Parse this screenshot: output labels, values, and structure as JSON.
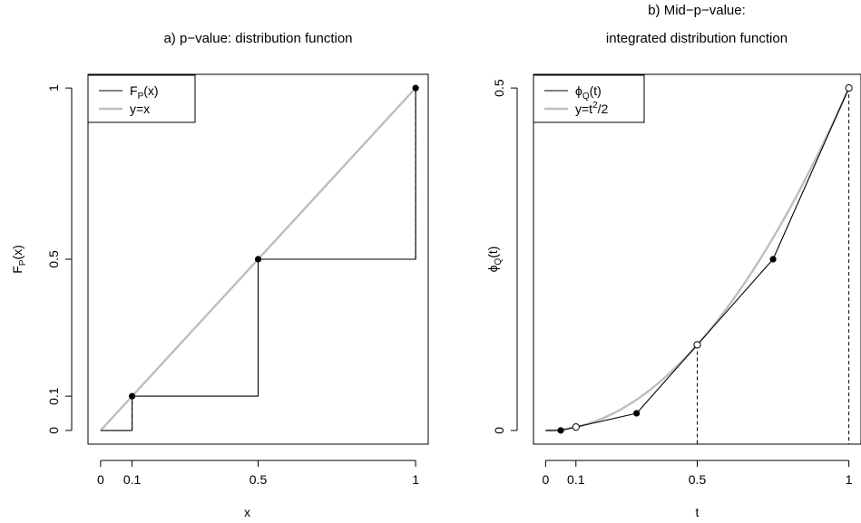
{
  "chart_data": [
    {
      "type": "line",
      "title": "a) p−value: distribution function",
      "xlabel": "x",
      "ylabel": {
        "main": "F",
        "sub": "P",
        "arg": "(x)"
      },
      "xlim": [
        -0.04,
        1.04
      ],
      "ylim": [
        -0.04,
        1.04
      ],
      "xticks": [
        0,
        0.1,
        0.5,
        1
      ],
      "xtick_labels": [
        "0",
        "0.1",
        "0.5",
        "1"
      ],
      "yticks": [
        0,
        0.1,
        0.5,
        1
      ],
      "ytick_labels": [
        "0",
        "0.1",
        "0.5",
        "1"
      ],
      "legend": {
        "placement": "top-left",
        "entries": [
          {
            "main": "F",
            "sub": "P",
            "arg": "(x)",
            "color": "#000000"
          },
          {
            "text": "y=x",
            "color": "#bebebe"
          }
        ]
      },
      "series": [
        {
          "name": "F_P(x)",
          "style": "step",
          "color": "#000000",
          "points": [
            [
              0,
              0
            ],
            [
              0.1,
              0
            ],
            [
              0.1,
              0.1
            ],
            [
              0.5,
              0.1
            ],
            [
              0.5,
              0.5
            ],
            [
              1,
              0.5
            ],
            [
              1,
              1
            ]
          ],
          "dashed_segments": [
            [
              0.1,
              0,
              0.1
            ],
            [
              0.5,
              0.1,
              0.5
            ],
            [
              1,
              0.5,
              1
            ]
          ],
          "filled_points": [
            [
              0.1,
              0.1
            ],
            [
              0.5,
              0.5
            ],
            [
              1,
              1
            ]
          ]
        },
        {
          "name": "y=x",
          "color": "#bebebe",
          "points": [
            [
              0,
              0
            ],
            [
              1,
              1
            ]
          ]
        }
      ]
    },
    {
      "type": "line",
      "title": [
        "b) Mid−p−value:",
        "integrated distribution function"
      ],
      "xlabel": "t",
      "ylabel": {
        "main": "ϕ",
        "sub": "Q",
        "arg": "(t)"
      },
      "xlim": [
        -0.04,
        1.04
      ],
      "ylim": [
        -0.02,
        0.52
      ],
      "xticks": [
        0,
        0.1,
        0.5,
        1
      ],
      "xtick_labels": [
        "0",
        "0.1",
        "0.5",
        "1"
      ],
      "yticks": [
        0,
        0.5
      ],
      "ytick_labels": [
        "0",
        "0.5"
      ],
      "legend": {
        "placement": "top-left",
        "entries": [
          {
            "main": "ϕ",
            "sub": "Q",
            "arg": "(t)",
            "color": "#000000"
          },
          {
            "text": "y=t",
            "sup": "2",
            "tail": "/2",
            "color": "#bebebe"
          }
        ]
      },
      "series": [
        {
          "name": "phi_Q(t)",
          "color": "#000000",
          "points": [
            [
              0,
              0
            ],
            [
              0.05,
              0
            ],
            [
              0.1,
              0.005
            ],
            [
              0.3,
              0.025
            ],
            [
              0.5,
              0.125
            ],
            [
              0.75,
              0.25
            ],
            [
              1,
              0.5
            ]
          ],
          "filled_points": [
            [
              0.05,
              0
            ],
            [
              0.3,
              0.025
            ],
            [
              0.75,
              0.25
            ]
          ],
          "open_points": [
            [
              0.1,
              0.005
            ],
            [
              0.5,
              0.125
            ],
            [
              1,
              0.5
            ]
          ],
          "dashed_drops": [
            0.5,
            1
          ]
        },
        {
          "name": "y=t^2/2",
          "color": "#bebebe",
          "function": "t^2/2",
          "domain": [
            0,
            1
          ]
        }
      ]
    }
  ]
}
